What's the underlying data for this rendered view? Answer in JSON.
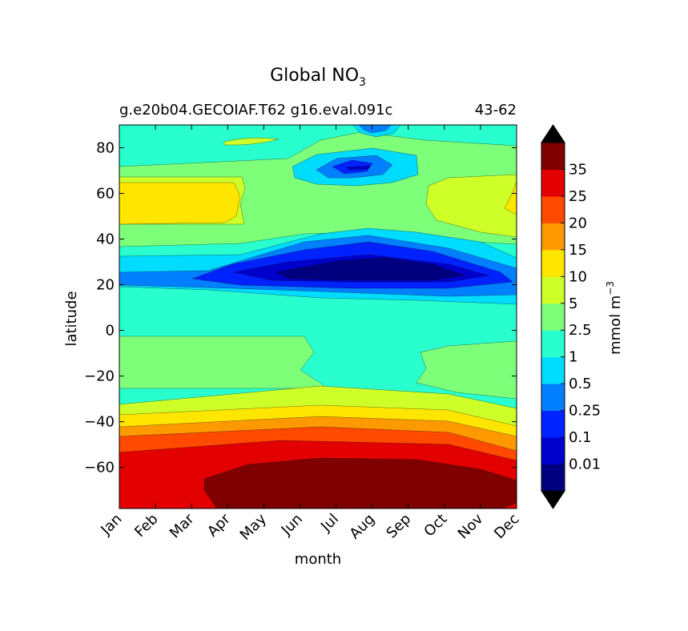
{
  "chart_data": {
    "type": "heatmap",
    "title_main": "Global NO",
    "title_sub": "3",
    "subtitle_left": "g.e20b04.GECOIAF.T62 g16.eval.091c",
    "subtitle_right": "43-62",
    "xlabel": "month",
    "ylabel": "latitude",
    "x_categories": [
      "Jan",
      "Feb",
      "Mar",
      "Apr",
      "May",
      "Jun",
      "Jul",
      "Aug",
      "Sep",
      "Oct",
      "Nov",
      "Dec"
    ],
    "y_ticks": [
      80,
      60,
      40,
      20,
      0,
      -20,
      -40,
      -60
    ],
    "y_tick_labels": [
      "80",
      "60",
      "40",
      "20",
      "0",
      "−20",
      "−40",
      "−60"
    ],
    "ylim": [
      -78,
      90
    ],
    "colorbar": {
      "label_main": "mmol m",
      "label_sup": "−3",
      "levels": [
        0,
        0.01,
        0.1,
        0.25,
        0.5,
        1,
        2.5,
        5,
        10,
        15,
        20,
        25,
        35,
        40
      ],
      "tick_labels": [
        "0.01",
        "0.1",
        "0.25",
        "0.5",
        "1",
        "2.5",
        "5",
        "10",
        "15",
        "20",
        "25",
        "35"
      ],
      "colors": [
        "#00007f",
        "#0000cd",
        "#0022ff",
        "#0080ff",
        "#00dcfe",
        "#29ffce",
        "#7dff7a",
        "#ceff29",
        "#ffe600",
        "#ff9900",
        "#ff4a00",
        "#e30000",
        "#7f0000"
      ],
      "under_color": "#000000",
      "over_color": "#000000"
    }
  }
}
